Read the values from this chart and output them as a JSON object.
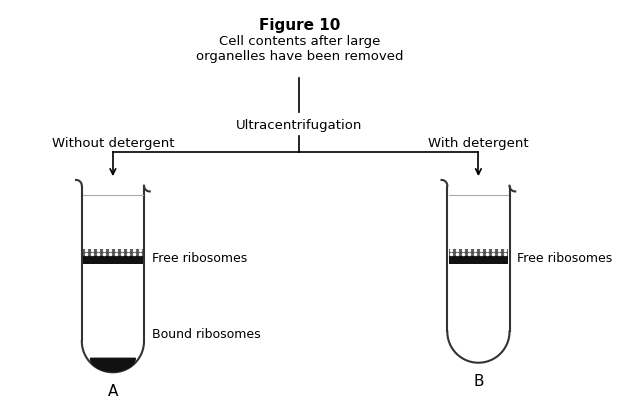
{
  "title": "Figure 10",
  "top_label": "Cell contents after large\norganelles have been removed",
  "mid_label": "Ultracentrifugation",
  "left_label": "Without detergent",
  "right_label": "With detergent",
  "tube_a_label": "A",
  "tube_b_label": "B",
  "free_ribo_label": "Free ribosomes",
  "bound_ribo_label": "Bound ribosomes",
  "bg_color": "#ffffff",
  "tube_color": "#333333",
  "band_dark_color": "#111111",
  "band_dot_color": "#555555",
  "pellet_color": "#111111",
  "fig_width": 6.27,
  "fig_height": 4.11,
  "dpi": 100
}
